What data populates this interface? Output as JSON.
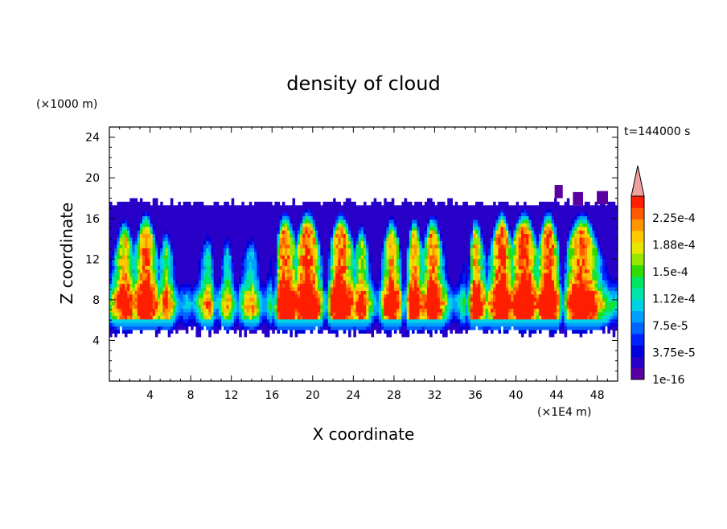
{
  "chart_data": {
    "type": "heatmap",
    "title": "density of cloud",
    "xlabel": "X coordinate",
    "ylabel": "Z coordinate",
    "x_unit": "(×1E4 m)",
    "y_unit": "(×1000 m)",
    "time_label": "t=144000 s",
    "xlim": [
      0,
      50
    ],
    "ylim": [
      0,
      25
    ],
    "x_ticks": [
      4,
      8,
      12,
      16,
      20,
      24,
      28,
      32,
      36,
      40,
      44,
      48
    ],
    "y_ticks": [
      4,
      8,
      12,
      16,
      20,
      24
    ],
    "cloud_base": 5,
    "cloud_top_approx": 17.8,
    "colorbar": {
      "labels": [
        "2.25e-4",
        "1.88e-4",
        "1.5e-4",
        "1.12e-4",
        "7.5e-5",
        "3.75e-5",
        "1e-16"
      ],
      "max": 0.00024,
      "colors": [
        "#5a00a0",
        "#2800c8",
        "#0000dc",
        "#0020ff",
        "#0064ff",
        "#00a0ff",
        "#00d2e6",
        "#00e6aa",
        "#00e664",
        "#32dc00",
        "#96e600",
        "#e6e600",
        "#ffc800",
        "#ff9600",
        "#ff5a00",
        "#ff1e00",
        "#f0a0a0"
      ],
      "overflow_color": "#f0a0a0"
    },
    "grid": false,
    "legend_position": "right"
  }
}
